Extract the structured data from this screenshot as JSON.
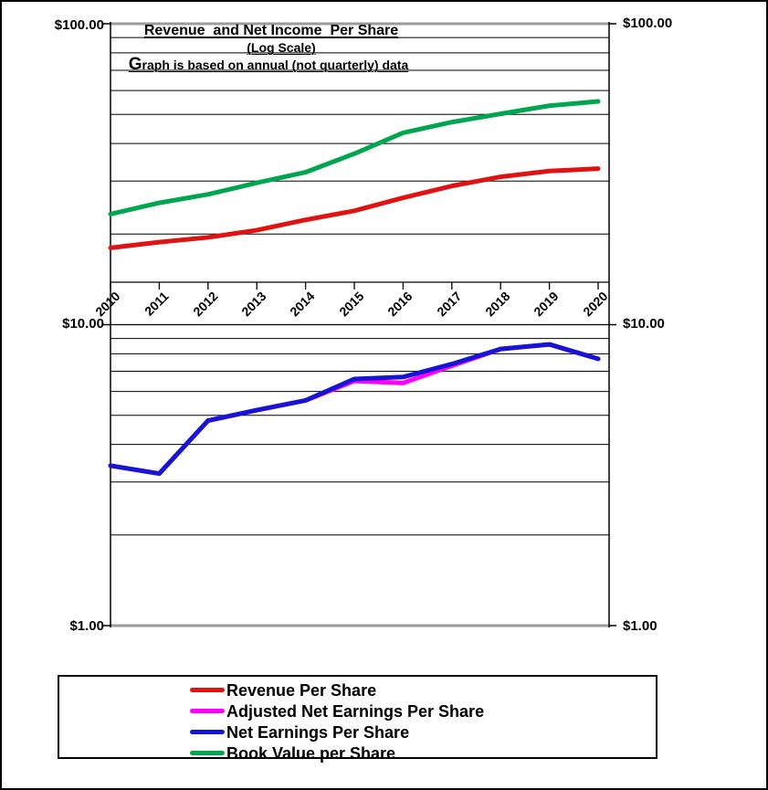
{
  "chart_data": {
    "type": "line",
    "scale": "log",
    "title": "Revenue  and Net Income  Per Share",
    "subtitle": "(Log Scale)",
    "note": "Graph is based on annual (not quarterly) data",
    "x": [
      2010,
      2011,
      2012,
      2013,
      2014,
      2015,
      2016,
      2017,
      2018,
      2019,
      2020
    ],
    "ylim": [
      1,
      100
    ],
    "grid": "log-minor-on",
    "legend_position": "bottom",
    "y_axis": {
      "left_labels": [
        "$100.00",
        "$10.00",
        "$1.00"
      ],
      "right_labels": [
        "$100.00",
        "$10.00",
        "$1.00"
      ],
      "tick_values": [
        100,
        10,
        1
      ]
    },
    "series": [
      {
        "name": "Revenue Per Share",
        "color": "#e01313",
        "values": [
          18.0,
          18.8,
          19.5,
          20.6,
          22.3,
          23.9,
          26.4,
          28.9,
          31.0,
          32.4,
          33.0
        ]
      },
      {
        "name": "Adjusted Net Earnings Per Share",
        "color": "#ff00ff",
        "values": [
          3.4,
          3.2,
          4.8,
          5.2,
          5.6,
          6.5,
          6.4,
          7.3,
          8.3,
          8.6,
          7.7
        ]
      },
      {
        "name": "Net Earnings Per Share",
        "color": "#1515d3",
        "values": [
          3.4,
          3.2,
          4.8,
          5.2,
          5.6,
          6.6,
          6.7,
          7.4,
          8.3,
          8.6,
          7.7
        ]
      },
      {
        "name": "Book Value per Share",
        "color": "#00a550",
        "values": [
          23.3,
          25.4,
          27.1,
          29.6,
          32.1,
          37.0,
          43.4,
          47.1,
          50.2,
          53.4,
          55.2
        ]
      }
    ],
    "colors": {
      "grid": "#000000",
      "axis_major": "#9b9b9b",
      "border": "#000000"
    }
  }
}
